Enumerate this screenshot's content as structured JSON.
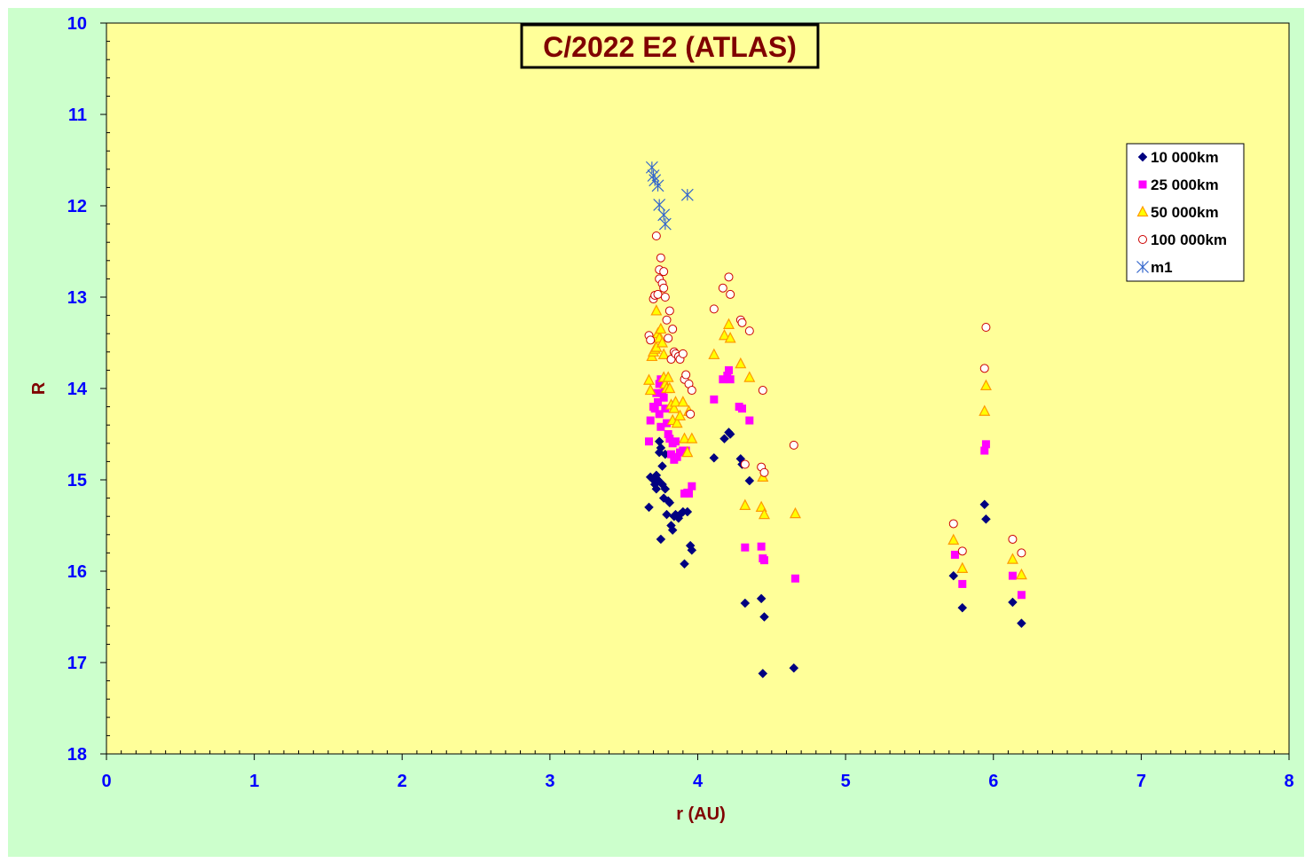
{
  "chart_data": {
    "type": "scatter",
    "title": "C/2022 E2 (ATLAS)",
    "xlabel": "r (AU)",
    "ylabel": "R",
    "xlim": [
      0,
      8
    ],
    "ylim": [
      10,
      18
    ],
    "y_inverted": true,
    "x_ticks": [
      0,
      1,
      2,
      3,
      4,
      5,
      6,
      7,
      8
    ],
    "y_ticks": [
      10,
      11,
      12,
      13,
      14,
      15,
      16,
      17,
      18
    ],
    "grid": false,
    "legend_position": "top-right",
    "colors": {
      "plot_background": "#ffff99",
      "chart_background": "#ccffcc",
      "tick_labels": "#0000ff",
      "axis_titles": "#800000"
    },
    "series": [
      {
        "name": "10 000km",
        "marker": "diamond",
        "color": "#000080",
        "points": [
          [
            3.67,
            15.3
          ],
          [
            3.68,
            14.97
          ],
          [
            3.7,
            15.0
          ],
          [
            3.71,
            15.05
          ],
          [
            3.72,
            14.95
          ],
          [
            3.72,
            15.1
          ],
          [
            3.73,
            15.0
          ],
          [
            3.74,
            14.58
          ],
          [
            3.74,
            14.7
          ],
          [
            3.75,
            14.65
          ],
          [
            3.75,
            15.65
          ],
          [
            3.76,
            14.85
          ],
          [
            3.76,
            15.05
          ],
          [
            3.77,
            15.2
          ],
          [
            3.78,
            15.1
          ],
          [
            3.78,
            14.72
          ],
          [
            3.79,
            15.38
          ],
          [
            3.8,
            15.23
          ],
          [
            3.81,
            15.25
          ],
          [
            3.82,
            15.5
          ],
          [
            3.83,
            15.55
          ],
          [
            3.84,
            15.4
          ],
          [
            3.85,
            15.38
          ],
          [
            3.87,
            15.42
          ],
          [
            3.88,
            15.38
          ],
          [
            3.9,
            15.35
          ],
          [
            3.91,
            15.92
          ],
          [
            3.93,
            15.35
          ],
          [
            3.95,
            15.72
          ],
          [
            3.96,
            15.77
          ],
          [
            4.11,
            14.76
          ],
          [
            4.18,
            14.55
          ],
          [
            4.21,
            14.48
          ],
          [
            4.22,
            14.5
          ],
          [
            4.29,
            14.77
          ],
          [
            4.3,
            14.83
          ],
          [
            4.32,
            16.35
          ],
          [
            4.35,
            15.01
          ],
          [
            4.43,
            16.3
          ],
          [
            4.44,
            17.12
          ],
          [
            4.45,
            16.5
          ],
          [
            4.65,
            17.06
          ],
          [
            5.73,
            16.05
          ],
          [
            5.79,
            16.4
          ],
          [
            5.94,
            15.27
          ],
          [
            5.95,
            15.43
          ],
          [
            6.13,
            16.34
          ],
          [
            6.19,
            16.57
          ]
        ]
      },
      {
        "name": "25 000km",
        "marker": "square",
        "color": "#ff00ff",
        "points": [
          [
            3.67,
            14.58
          ],
          [
            3.68,
            14.35
          ],
          [
            3.7,
            14.2
          ],
          [
            3.71,
            14.22
          ],
          [
            3.72,
            14.05
          ],
          [
            3.73,
            14.15
          ],
          [
            3.74,
            13.95
          ],
          [
            3.74,
            14.28
          ],
          [
            3.75,
            13.9
          ],
          [
            3.75,
            14.42
          ],
          [
            3.76,
            14.05
          ],
          [
            3.77,
            14.1
          ],
          [
            3.78,
            14.0
          ],
          [
            3.78,
            14.22
          ],
          [
            3.79,
            14.38
          ],
          [
            3.8,
            14.5
          ],
          [
            3.81,
            14.55
          ],
          [
            3.82,
            14.72
          ],
          [
            3.83,
            14.6
          ],
          [
            3.84,
            14.78
          ],
          [
            3.85,
            14.58
          ],
          [
            3.86,
            14.75
          ],
          [
            3.88,
            14.7
          ],
          [
            3.9,
            14.68
          ],
          [
            3.91,
            15.15
          ],
          [
            3.92,
            14.68
          ],
          [
            3.93,
            15.14
          ],
          [
            3.94,
            15.15
          ],
          [
            3.96,
            15.07
          ],
          [
            4.11,
            14.12
          ],
          [
            4.17,
            13.9
          ],
          [
            4.2,
            13.86
          ],
          [
            4.21,
            13.8
          ],
          [
            4.22,
            13.9
          ],
          [
            4.28,
            14.2
          ],
          [
            4.3,
            14.22
          ],
          [
            4.32,
            15.74
          ],
          [
            4.35,
            14.35
          ],
          [
            4.43,
            15.73
          ],
          [
            4.44,
            15.86
          ],
          [
            4.45,
            15.88
          ],
          [
            4.66,
            16.08
          ],
          [
            5.74,
            15.82
          ],
          [
            5.79,
            16.14
          ],
          [
            5.94,
            14.68
          ],
          [
            5.95,
            14.61
          ],
          [
            6.13,
            16.05
          ],
          [
            6.19,
            16.26
          ]
        ]
      },
      {
        "name": "50 000km",
        "marker": "triangle",
        "color": "#ff9900",
        "points": [
          [
            3.67,
            13.91
          ],
          [
            3.68,
            14.02
          ],
          [
            3.69,
            13.65
          ],
          [
            3.7,
            13.6
          ],
          [
            3.71,
            13.57
          ],
          [
            3.72,
            13.15
          ],
          [
            3.72,
            13.55
          ],
          [
            3.73,
            13.4
          ],
          [
            3.74,
            13.45
          ],
          [
            3.75,
            13.35
          ],
          [
            3.76,
            13.5
          ],
          [
            3.77,
            13.63
          ],
          [
            3.77,
            13.88
          ],
          [
            3.78,
            13.95
          ],
          [
            3.79,
            14.0
          ],
          [
            3.8,
            13.88
          ],
          [
            3.81,
            14.0
          ],
          [
            3.82,
            14.18
          ],
          [
            3.83,
            14.35
          ],
          [
            3.84,
            14.22
          ],
          [
            3.85,
            14.15
          ],
          [
            3.86,
            14.38
          ],
          [
            3.88,
            14.3
          ],
          [
            3.9,
            14.15
          ],
          [
            3.91,
            14.55
          ],
          [
            3.93,
            14.7
          ],
          [
            3.94,
            14.25
          ],
          [
            3.96,
            14.55
          ],
          [
            4.11,
            13.63
          ],
          [
            4.18,
            13.42
          ],
          [
            4.21,
            13.3
          ],
          [
            4.22,
            13.45
          ],
          [
            4.29,
            13.73
          ],
          [
            4.32,
            15.28
          ],
          [
            4.35,
            13.88
          ],
          [
            4.43,
            15.3
          ],
          [
            4.44,
            14.97
          ],
          [
            4.45,
            15.38
          ],
          [
            4.66,
            15.37
          ],
          [
            5.73,
            15.66
          ],
          [
            5.79,
            15.97
          ],
          [
            5.94,
            14.25
          ],
          [
            5.95,
            13.97
          ],
          [
            6.13,
            15.87
          ],
          [
            6.19,
            16.04
          ]
        ]
      },
      {
        "name": "100 000km",
        "marker": "circle-open",
        "color": "#cc0000",
        "points": [
          [
            3.67,
            13.42
          ],
          [
            3.68,
            13.47
          ],
          [
            3.7,
            13.02
          ],
          [
            3.71,
            12.98
          ],
          [
            3.72,
            12.33
          ],
          [
            3.73,
            12.97
          ],
          [
            3.74,
            12.7
          ],
          [
            3.74,
            12.8
          ],
          [
            3.75,
            12.57
          ],
          [
            3.76,
            12.85
          ],
          [
            3.77,
            12.72
          ],
          [
            3.77,
            12.9
          ],
          [
            3.78,
            13.0
          ],
          [
            3.79,
            13.25
          ],
          [
            3.8,
            13.45
          ],
          [
            3.81,
            13.15
          ],
          [
            3.82,
            13.68
          ],
          [
            3.83,
            13.35
          ],
          [
            3.84,
            13.6
          ],
          [
            3.85,
            13.62
          ],
          [
            3.87,
            13.65
          ],
          [
            3.88,
            13.68
          ],
          [
            3.9,
            13.62
          ],
          [
            3.91,
            13.9
          ],
          [
            3.92,
            13.85
          ],
          [
            3.94,
            13.95
          ],
          [
            3.95,
            14.28
          ],
          [
            3.96,
            14.02
          ],
          [
            4.11,
            13.13
          ],
          [
            4.17,
            12.9
          ],
          [
            4.21,
            12.78
          ],
          [
            4.22,
            12.97
          ],
          [
            4.29,
            13.25
          ],
          [
            4.3,
            13.28
          ],
          [
            4.32,
            14.83
          ],
          [
            4.35,
            13.37
          ],
          [
            4.43,
            14.86
          ],
          [
            4.44,
            14.02
          ],
          [
            4.45,
            14.92
          ],
          [
            4.65,
            14.62
          ],
          [
            5.73,
            15.48
          ],
          [
            5.79,
            15.78
          ],
          [
            5.94,
            13.78
          ],
          [
            5.95,
            13.33
          ],
          [
            6.13,
            15.65
          ],
          [
            6.19,
            15.8
          ]
        ]
      },
      {
        "name": "m1",
        "marker": "star",
        "color": "#3366cc",
        "points": [
          [
            3.69,
            11.58
          ],
          [
            3.7,
            11.67
          ],
          [
            3.71,
            11.72
          ],
          [
            3.73,
            11.78
          ],
          [
            3.74,
            11.99
          ],
          [
            3.77,
            12.1
          ],
          [
            3.78,
            12.2
          ],
          [
            3.93,
            11.88
          ]
        ]
      }
    ]
  }
}
